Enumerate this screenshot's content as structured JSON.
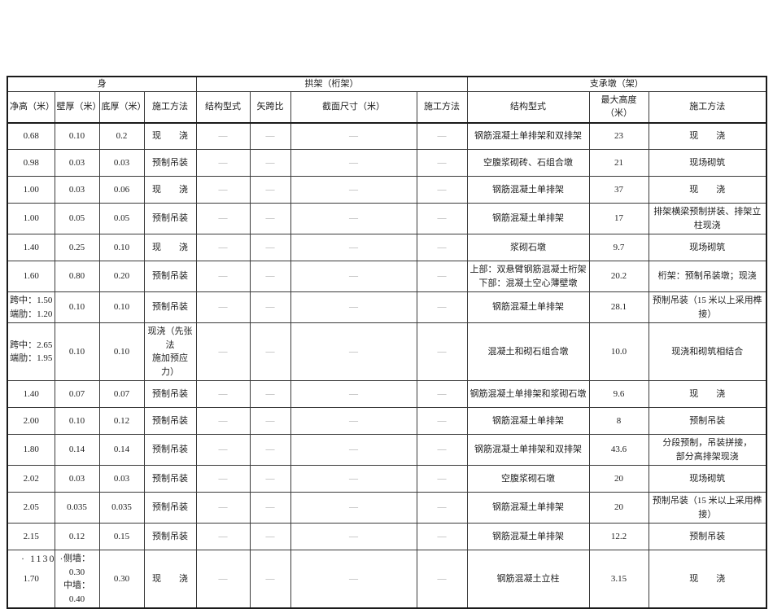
{
  "page": {
    "footer": "· 1130 ·"
  },
  "table": {
    "dash": "—",
    "groups": [
      {
        "label": "身",
        "colspan": 4
      },
      {
        "label": "拱架（桁架）",
        "colspan": 4
      },
      {
        "label": "支承墩（架）",
        "colspan": 3
      }
    ],
    "columns": [
      "净高（米）",
      "壁厚（米）",
      "底厚（米）",
      "施工方法",
      "结构型式",
      "矢跨比",
      "截面尺寸（米）",
      "施工方法",
      "结构型式",
      "最大高度（米）",
      "施工方法"
    ],
    "rows": [
      [
        "0.68",
        "0.10",
        "0.2",
        "现　　浇",
        "—",
        "—",
        "—",
        "—",
        "钢筋混凝土单排架和双排架",
        "23",
        "现　　浇"
      ],
      [
        "0.98",
        "0.03",
        "0.03",
        "预制吊装",
        "—",
        "—",
        "—",
        "—",
        "空腹浆砌砖、石组合墩",
        "21",
        "现场砌筑"
      ],
      [
        "1.00",
        "0.03",
        "0.06",
        "现　　浇",
        "—",
        "—",
        "—",
        "—",
        "钢筋混凝土单排架",
        "37",
        "现　　浇"
      ],
      [
        "1.00",
        "0.05",
        "0.05",
        "预制吊装",
        "—",
        "—",
        "—",
        "—",
        "钢筋混凝土单排架",
        "17",
        "排架横梁预制拼装、排架立柱现浇"
      ],
      [
        "1.40",
        "0.25",
        "0.10",
        "现　　浇",
        "—",
        "—",
        "—",
        "—",
        "浆砌石墩",
        "9.7",
        "现场砌筑"
      ],
      [
        "1.60",
        "0.80",
        "0.20",
        "预制吊装",
        "—",
        "—",
        "—",
        "—",
        "上部：双悬臂钢筋混凝土桁架\n下部：混凝土空心薄壁墩",
        "20.2",
        "桁架：预制吊装墩；现浇"
      ],
      [
        "跨中：1.50\n端肋：1.20",
        "0.10",
        "0.10",
        "预制吊装",
        "—",
        "—",
        "—",
        "—",
        "钢筋混凝土单排架",
        "28.1",
        "预制吊装（15 米以上采用榫接）"
      ],
      [
        "跨中：2.65\n端肋：1.95",
        "0.10",
        "0.10",
        "现浇（先张法\n施加预应力）",
        "—",
        "—",
        "—",
        "—",
        "混凝土和砌石组合墩",
        "10.0",
        "现浇和砌筑相结合"
      ],
      [
        "1.40",
        "0.07",
        "0.07",
        "预制吊装",
        "—",
        "—",
        "—",
        "—",
        "钢筋混凝土单排架和浆砌石墩",
        "9.6",
        "现　　浇"
      ],
      [
        "2.00",
        "0.10",
        "0.12",
        "预制吊装",
        "—",
        "—",
        "—",
        "—",
        "钢筋混凝土单排架",
        "8",
        "预制吊装"
      ],
      [
        "1.80",
        "0.14",
        "0.14",
        "预制吊装",
        "—",
        "—",
        "—",
        "—",
        "钢筋混凝土单排架和双排架",
        "43.6",
        "分段预制，吊装拼接，\n部分高排架现浇"
      ],
      [
        "2.02",
        "0.03",
        "0.03",
        "预制吊装",
        "—",
        "—",
        "—",
        "—",
        "空腹浆砌石墩",
        "20",
        "现场砌筑"
      ],
      [
        "2.05",
        "0.035",
        "0.035",
        "预制吊装",
        "—",
        "—",
        "—",
        "—",
        "钢筋混凝土单排架",
        "20",
        "预制吊装（15 米以上采用榫接）"
      ],
      [
        "2.15",
        "0.12",
        "0.15",
        "预制吊装",
        "—",
        "—",
        "—",
        "—",
        "钢筋混凝土单排架",
        "12.2",
        "预制吊装"
      ],
      [
        "1.70",
        "侧墙：0.30\n中墙：0.40",
        "0.30",
        "现　　浇",
        "—",
        "—",
        "—",
        "—",
        "钢筋混凝土立柱",
        "3.15",
        "现　　浇"
      ]
    ]
  }
}
